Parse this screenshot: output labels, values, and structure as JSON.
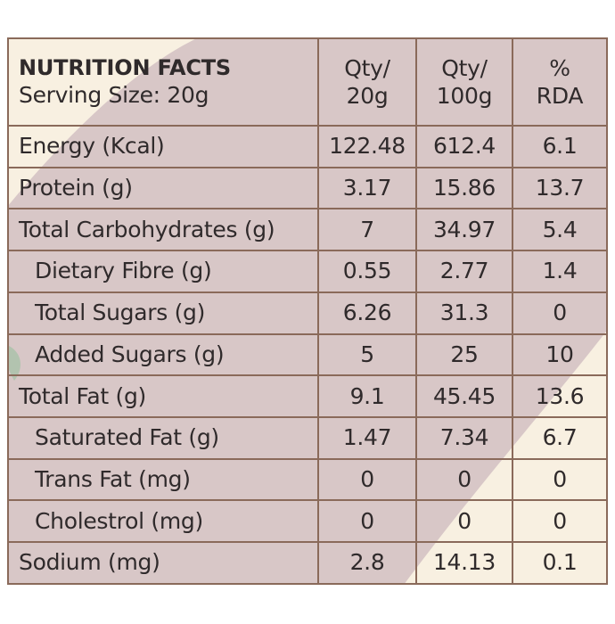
{
  "panel": {
    "title": "NUTRITION FACTS",
    "serving_size": "Serving Size: 20g",
    "columns": [
      {
        "line1": "Qty/",
        "line2": "20g"
      },
      {
        "line1": "Qty/",
        "line2": "100g"
      },
      {
        "line1": "%",
        "line2": "RDA"
      }
    ]
  },
  "rows": [
    {
      "label": "Energy (Kcal)",
      "per_20g": "122.48",
      "per_100g": "612.4",
      "rda": "6.1"
    },
    {
      "label": "Protein (g)",
      "per_20g": "3.17",
      "per_100g": "15.86",
      "rda": "13.7"
    },
    {
      "label": "Total Carbohydrates (g)",
      "per_20g": "7",
      "per_100g": "34.97",
      "rda": "5.4"
    },
    {
      "label": "Dietary Fibre (g)",
      "per_20g": "0.55",
      "per_100g": "2.77",
      "rda": "1.4"
    },
    {
      "label": "Total Sugars (g)",
      "per_20g": "6.26",
      "per_100g": "31.3",
      "rda": "0"
    },
    {
      "label": "Added Sugars (g)",
      "per_20g": "5",
      "per_100g": "25",
      "rda": "10"
    },
    {
      "label": "Total Fat (g)",
      "per_20g": "9.1",
      "per_100g": "45.45",
      "rda": "13.6"
    },
    {
      "label": "Saturated Fat (g)",
      "per_20g": "1.47",
      "per_100g": "7.34",
      "rda": "6.7"
    },
    {
      "label": "Trans Fat (mg)",
      "per_20g": "0",
      "per_100g": "0",
      "rda": "0"
    },
    {
      "label": "Cholestrol (mg)",
      "per_20g": "0",
      "per_100g": "0",
      "rda": "0"
    },
    {
      "label": "Sodium (mg)",
      "per_20g": "2.8",
      "per_100g": "14.13",
      "rda": "0.1"
    }
  ],
  "colors": {
    "panel_mauve": "#d8c7c7",
    "panel_cream": "#f8f0e1",
    "border": "#8a6a5a",
    "text": "#2f2a2b",
    "leaf_green": "#a9c2a9"
  }
}
